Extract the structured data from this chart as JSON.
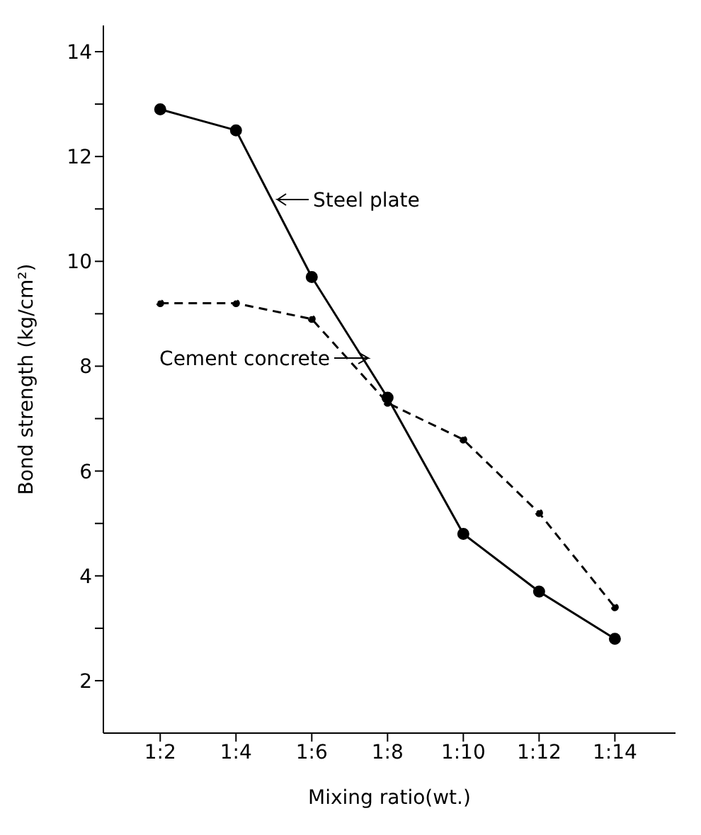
{
  "chart_data": {
    "type": "line",
    "xlabel": "Mixing ratio(wt.)",
    "ylabel": "Bond strength (kg/cm²)",
    "categories": [
      "1:2",
      "1:4",
      "1:6",
      "1:8",
      "1:10",
      "1:12",
      "1:14"
    ],
    "series": [
      {
        "color": "#000000",
        "line_style": "solid",
        "values": [
          12.9,
          12.5,
          9.7,
          7.4,
          4.8,
          3.7,
          2.8
        ]
      },
      {
        "color": "#000000",
        "line_style": "dashed",
        "values": [
          9.2,
          9.2,
          8.9,
          7.3,
          6.6,
          5.2,
          3.4
        ]
      }
    ],
    "ylim": [
      1,
      14.5
    ],
    "yticks": [
      2,
      {
        "value": 3,
        "label": null
      },
      4,
      {
        "value": 5,
        "label": null
      },
      6,
      {
        "value": 7,
        "label": null
      },
      8,
      {
        "value": 9,
        "label": null
      },
      10,
      {
        "value": 11,
        "label": null
      },
      12,
      {
        "value": 13,
        "label": null
      },
      14
    ],
    "annotations": [
      "Steel plate",
      "Cement concrete"
    ],
    "grid": false,
    "legend": false,
    "marker": "circle"
  }
}
